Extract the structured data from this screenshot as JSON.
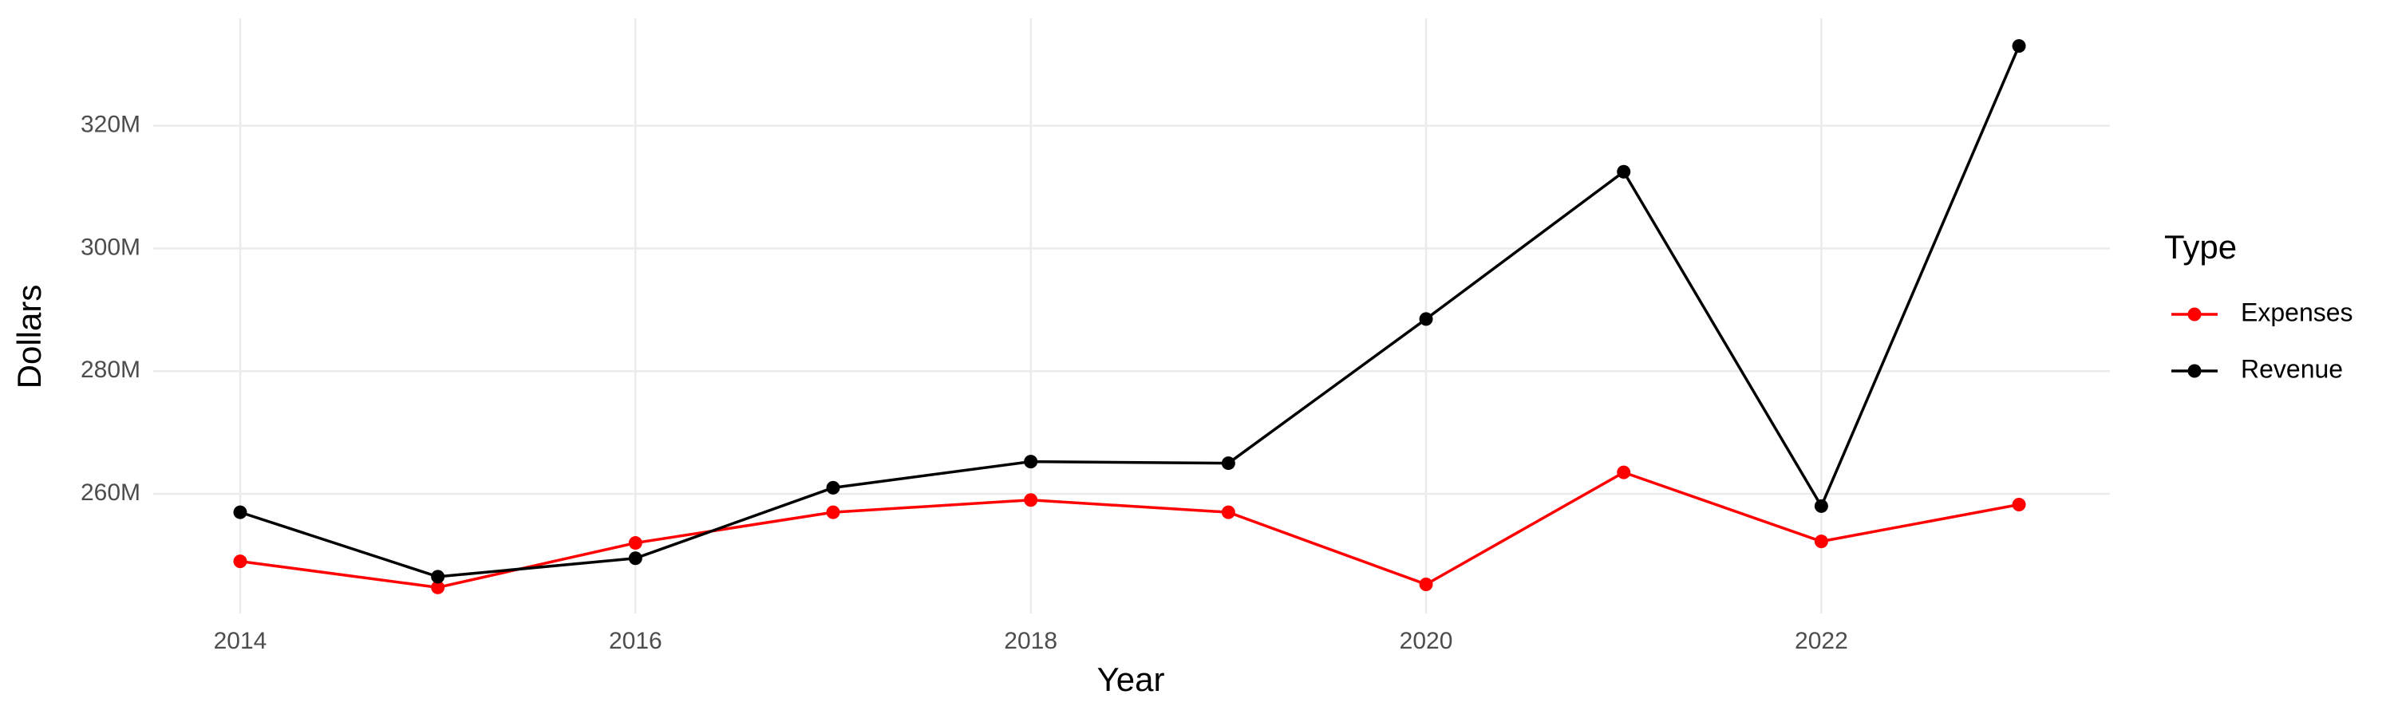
{
  "chart_data": {
    "type": "line",
    "x_label": "Year",
    "y_label": "Dollars",
    "legend_title": "Type",
    "x": [
      2014,
      2015,
      2016,
      2017,
      2018,
      2019,
      2020,
      2021,
      2022,
      2023
    ],
    "series": [
      {
        "name": "Expenses",
        "color": "#ff0000",
        "values": [
          249000000,
          244750000,
          252000000,
          257000000,
          259000000,
          257000000,
          245250000,
          263500000,
          252250000,
          258250000
        ]
      },
      {
        "name": "Revenue",
        "color": "#000000",
        "values": [
          257000000,
          246500000,
          249500000,
          261000000,
          265250000,
          265000000,
          288500000,
          312500000,
          258000000,
          333000000
        ]
      }
    ],
    "xlim": [
      2013.56,
      2023.46
    ],
    "ylim": [
      240500000,
      337500000
    ],
    "xticks": [
      2014,
      2016,
      2018,
      2020,
      2022
    ],
    "yticks": [
      {
        "value": 260000000,
        "label": "260M"
      },
      {
        "value": 280000000,
        "label": "280M"
      },
      {
        "value": 300000000,
        "label": "300M"
      },
      {
        "value": 320000000,
        "label": "320M"
      }
    ],
    "grid": true
  }
}
